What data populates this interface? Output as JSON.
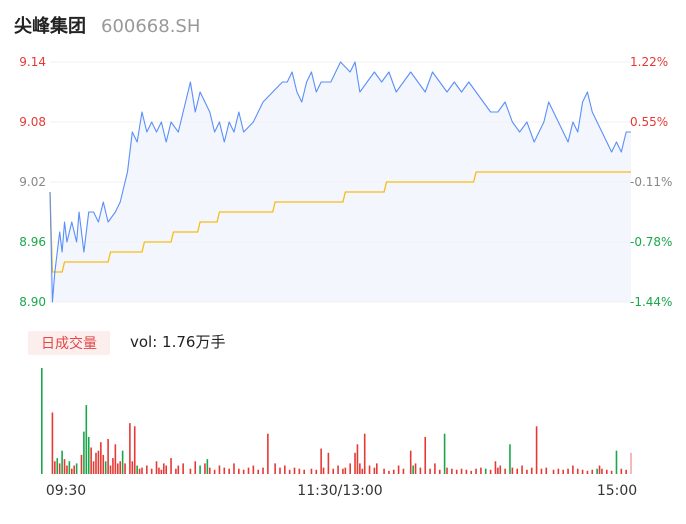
{
  "header": {
    "stock_name": "尖峰集团",
    "stock_code": "600668.SH"
  },
  "volume_panel": {
    "badge_label": "日成交量",
    "vol_text": "vol: 1.76万手"
  },
  "colors": {
    "price_line": "#5b8ff9",
    "avg_line": "#f6bd16",
    "up": "#e53935",
    "down": "#1aa74a",
    "neutral": "#888888",
    "area_fill": "#f3f6fd"
  },
  "chart_data": {
    "type": "line",
    "x_tick_labels": [
      "09:30",
      "11:30/13:00",
      "15:00"
    ],
    "y_left_ticks": [
      "9.14",
      "9.08",
      "9.02",
      "8.96",
      "8.90"
    ],
    "y_right_ticks": [
      "1.22%",
      "0.55%",
      "-0.11%",
      "-0.78%",
      "-1.44%"
    ],
    "y_right_colors": [
      "up",
      "up",
      "neutral",
      "down",
      "down"
    ],
    "y_left_colors": [
      "up",
      "up",
      "neutral",
      "down",
      "down"
    ],
    "ylim": [
      8.9,
      9.14
    ],
    "minutes": 240,
    "series": [
      {
        "kind": "price",
        "points": [
          [
            0,
            9.01
          ],
          [
            1,
            8.9
          ],
          [
            2,
            8.93
          ],
          [
            3,
            8.95
          ],
          [
            4,
            8.97
          ],
          [
            5,
            8.95
          ],
          [
            6,
            8.98
          ],
          [
            7,
            8.96
          ],
          [
            8,
            8.97
          ],
          [
            9,
            8.98
          ],
          [
            11,
            8.96
          ],
          [
            12,
            8.99
          ],
          [
            14,
            8.95
          ],
          [
            16,
            8.99
          ],
          [
            18,
            8.99
          ],
          [
            20,
            8.98
          ],
          [
            22,
            9.0
          ],
          [
            24,
            8.98
          ],
          [
            27,
            8.99
          ],
          [
            29,
            9.0
          ],
          [
            32,
            9.03
          ],
          [
            34,
            9.07
          ],
          [
            36,
            9.06
          ],
          [
            38,
            9.09
          ],
          [
            40,
            9.07
          ],
          [
            42,
            9.08
          ],
          [
            44,
            9.07
          ],
          [
            46,
            9.08
          ],
          [
            48,
            9.06
          ],
          [
            50,
            9.08
          ],
          [
            53,
            9.07
          ],
          [
            56,
            9.1
          ],
          [
            58,
            9.12
          ],
          [
            60,
            9.09
          ],
          [
            62,
            9.11
          ],
          [
            64,
            9.1
          ],
          [
            66,
            9.09
          ],
          [
            68,
            9.07
          ],
          [
            70,
            9.08
          ],
          [
            72,
            9.06
          ],
          [
            74,
            9.08
          ],
          [
            76,
            9.07
          ],
          [
            78,
            9.09
          ],
          [
            80,
            9.07
          ],
          [
            84,
            9.08
          ],
          [
            88,
            9.1
          ],
          [
            92,
            9.11
          ],
          [
            96,
            9.12
          ],
          [
            98,
            9.12
          ],
          [
            100,
            9.13
          ],
          [
            102,
            9.11
          ],
          [
            104,
            9.1
          ],
          [
            106,
            9.12
          ],
          [
            108,
            9.13
          ],
          [
            110,
            9.11
          ],
          [
            112,
            9.12
          ],
          [
            114,
            9.12
          ],
          [
            116,
            9.12
          ],
          [
            118,
            9.13
          ],
          [
            120,
            9.14
          ],
          [
            124,
            9.13
          ],
          [
            126,
            9.14
          ],
          [
            128,
            9.11
          ],
          [
            131,
            9.12
          ],
          [
            134,
            9.13
          ],
          [
            137,
            9.12
          ],
          [
            140,
            9.13
          ],
          [
            143,
            9.11
          ],
          [
            146,
            9.12
          ],
          [
            149,
            9.13
          ],
          [
            152,
            9.12
          ],
          [
            155,
            9.11
          ],
          [
            158,
            9.13
          ],
          [
            161,
            9.12
          ],
          [
            164,
            9.11
          ],
          [
            167,
            9.12
          ],
          [
            170,
            9.11
          ],
          [
            173,
            9.12
          ],
          [
            176,
            9.11
          ],
          [
            179,
            9.1
          ],
          [
            182,
            9.09
          ],
          [
            185,
            9.09
          ],
          [
            188,
            9.1
          ],
          [
            191,
            9.08
          ],
          [
            194,
            9.07
          ],
          [
            197,
            9.08
          ],
          [
            200,
            9.06
          ],
          [
            202,
            9.07
          ],
          [
            204,
            9.08
          ],
          [
            206,
            9.1
          ],
          [
            208,
            9.09
          ],
          [
            210,
            9.08
          ],
          [
            212,
            9.07
          ],
          [
            214,
            9.06
          ],
          [
            216,
            9.08
          ],
          [
            218,
            9.07
          ],
          [
            220,
            9.1
          ],
          [
            222,
            9.11
          ],
          [
            224,
            9.09
          ],
          [
            226,
            9.08
          ],
          [
            228,
            9.07
          ],
          [
            230,
            9.06
          ],
          [
            232,
            9.05
          ],
          [
            234,
            9.06
          ],
          [
            236,
            9.05
          ],
          [
            238,
            9.07
          ],
          [
            240,
            9.07
          ]
        ]
      },
      {
        "kind": "average",
        "points": [
          [
            0,
            9.01
          ],
          [
            1,
            8.93
          ],
          [
            5,
            8.93
          ],
          [
            6,
            8.94
          ],
          [
            24,
            8.94
          ],
          [
            25,
            8.95
          ],
          [
            38,
            8.95
          ],
          [
            39,
            8.96
          ],
          [
            50,
            8.96
          ],
          [
            51,
            8.97
          ],
          [
            61,
            8.97
          ],
          [
            62,
            8.98
          ],
          [
            69,
            8.98
          ],
          [
            70,
            8.99
          ],
          [
            92,
            8.99
          ],
          [
            93,
            9.0
          ],
          [
            121,
            9.0
          ],
          [
            122,
            9.01
          ],
          [
            138,
            9.01
          ],
          [
            139,
            9.02
          ],
          [
            175,
            9.02
          ],
          [
            176,
            9.03
          ],
          [
            240,
            9.03
          ]
        ]
      }
    ],
    "volume": {
      "bars": [
        [
          0,
          100,
          "down"
        ],
        [
          1,
          58,
          "up"
        ],
        [
          2,
          12,
          "up"
        ],
        [
          3,
          15,
          "down"
        ],
        [
          4,
          10,
          "up"
        ],
        [
          5,
          22,
          "down"
        ],
        [
          6,
          14,
          "up"
        ],
        [
          7,
          8,
          "up"
        ],
        [
          8,
          12,
          "down"
        ],
        [
          9,
          5,
          "up"
        ],
        [
          10,
          8,
          "up"
        ],
        [
          11,
          10,
          "down"
        ],
        [
          13,
          18,
          "up"
        ],
        [
          14,
          40,
          "down"
        ],
        [
          15,
          65,
          "down"
        ],
        [
          16,
          35,
          "down"
        ],
        [
          17,
          25,
          "up"
        ],
        [
          18,
          12,
          "up"
        ],
        [
          19,
          20,
          "up"
        ],
        [
          20,
          22,
          "up"
        ],
        [
          21,
          30,
          "up"
        ],
        [
          22,
          18,
          "up"
        ],
        [
          23,
          12,
          "down"
        ],
        [
          24,
          33,
          "up"
        ],
        [
          25,
          8,
          "up"
        ],
        [
          26,
          15,
          "up"
        ],
        [
          27,
          28,
          "up"
        ],
        [
          28,
          10,
          "up"
        ],
        [
          29,
          12,
          "up"
        ],
        [
          30,
          22,
          "down"
        ],
        [
          31,
          10,
          "up"
        ],
        [
          33,
          48,
          "up"
        ],
        [
          34,
          12,
          "up"
        ],
        [
          35,
          45,
          "up"
        ],
        [
          36,
          8,
          "down"
        ],
        [
          37,
          5,
          "up"
        ],
        [
          38,
          6,
          "up"
        ],
        [
          40,
          8,
          "up"
        ],
        [
          42,
          5,
          "up"
        ],
        [
          44,
          12,
          "up"
        ],
        [
          45,
          6,
          "up"
        ],
        [
          46,
          4,
          "up"
        ],
        [
          47,
          10,
          "up"
        ],
        [
          48,
          8,
          "up"
        ],
        [
          50,
          15,
          "up"
        ],
        [
          52,
          5,
          "up"
        ],
        [
          53,
          8,
          "up"
        ],
        [
          55,
          10,
          "up"
        ],
        [
          58,
          5,
          "up"
        ],
        [
          60,
          12,
          "up"
        ],
        [
          62,
          8,
          "down"
        ],
        [
          64,
          10,
          "up"
        ],
        [
          65,
          14,
          "down"
        ],
        [
          66,
          6,
          "up"
        ],
        [
          68,
          4,
          "up"
        ],
        [
          70,
          8,
          "up"
        ],
        [
          72,
          6,
          "up"
        ],
        [
          74,
          5,
          "up"
        ],
        [
          76,
          10,
          "up"
        ],
        [
          78,
          5,
          "up"
        ],
        [
          80,
          4,
          "up"
        ],
        [
          82,
          6,
          "up"
        ],
        [
          84,
          8,
          "up"
        ],
        [
          86,
          4,
          "up"
        ],
        [
          88,
          6,
          "up"
        ],
        [
          90,
          38,
          "up"
        ],
        [
          93,
          10,
          "up"
        ],
        [
          95,
          6,
          "up"
        ],
        [
          97,
          8,
          "up"
        ],
        [
          99,
          4,
          "up"
        ],
        [
          101,
          6,
          "up"
        ],
        [
          103,
          5,
          "up"
        ],
        [
          105,
          4,
          "up"
        ],
        [
          108,
          5,
          "up"
        ],
        [
          110,
          4,
          "up"
        ],
        [
          112,
          24,
          "up"
        ],
        [
          113,
          6,
          "up"
        ],
        [
          115,
          20,
          "up"
        ],
        [
          117,
          5,
          "up"
        ],
        [
          119,
          8,
          "up"
        ],
        [
          121,
          5,
          "up"
        ],
        [
          122,
          6,
          "up"
        ],
        [
          124,
          10,
          "up"
        ],
        [
          126,
          20,
          "up"
        ],
        [
          127,
          28,
          "up"
        ],
        [
          128,
          10,
          "up"
        ],
        [
          129,
          5,
          "up"
        ],
        [
          130,
          38,
          "up"
        ],
        [
          132,
          8,
          "up"
        ],
        [
          134,
          6,
          "up"
        ],
        [
          135,
          10,
          "up"
        ],
        [
          138,
          5,
          "up"
        ],
        [
          140,
          3,
          "up"
        ],
        [
          142,
          4,
          "up"
        ],
        [
          144,
          8,
          "up"
        ],
        [
          146,
          5,
          "up"
        ],
        [
          149,
          22,
          "up"
        ],
        [
          150,
          8,
          "down"
        ],
        [
          151,
          10,
          "up"
        ],
        [
          153,
          6,
          "up"
        ],
        [
          155,
          35,
          "up"
        ],
        [
          157,
          5,
          "up"
        ],
        [
          159,
          10,
          "up"
        ],
        [
          161,
          4,
          "up"
        ],
        [
          163,
          38,
          "down"
        ],
        [
          164,
          6,
          "up"
        ],
        [
          166,
          5,
          "up"
        ],
        [
          168,
          4,
          "up"
        ],
        [
          170,
          5,
          "up"
        ],
        [
          172,
          4,
          "up"
        ],
        [
          174,
          3,
          "up"
        ],
        [
          176,
          5,
          "up"
        ],
        [
          178,
          6,
          "up"
        ],
        [
          180,
          5,
          "down"
        ],
        [
          182,
          4,
          "up"
        ],
        [
          184,
          12,
          "up"
        ],
        [
          185,
          6,
          "up"
        ],
        [
          186,
          8,
          "up"
        ],
        [
          188,
          5,
          "up"
        ],
        [
          190,
          28,
          "down"
        ],
        [
          191,
          6,
          "up"
        ],
        [
          193,
          5,
          "up"
        ],
        [
          195,
          8,
          "up"
        ],
        [
          197,
          4,
          "up"
        ],
        [
          199,
          6,
          "up"
        ],
        [
          201,
          45,
          "up"
        ],
        [
          203,
          5,
          "up"
        ],
        [
          205,
          6,
          "up"
        ],
        [
          208,
          4,
          "up"
        ],
        [
          210,
          5,
          "up"
        ],
        [
          212,
          4,
          "up"
        ],
        [
          214,
          5,
          "up"
        ],
        [
          216,
          8,
          "up"
        ],
        [
          218,
          5,
          "up"
        ],
        [
          220,
          4,
          "up"
        ],
        [
          222,
          3,
          "up"
        ],
        [
          224,
          4,
          "up"
        ],
        [
          226,
          5,
          "down"
        ],
        [
          227,
          8,
          "up"
        ],
        [
          228,
          5,
          "up"
        ],
        [
          230,
          4,
          "up"
        ],
        [
          232,
          3,
          "up"
        ],
        [
          234,
          22,
          "down"
        ],
        [
          236,
          5,
          "up"
        ],
        [
          238,
          4,
          "up"
        ],
        [
          240,
          20,
          "up"
        ]
      ]
    }
  }
}
